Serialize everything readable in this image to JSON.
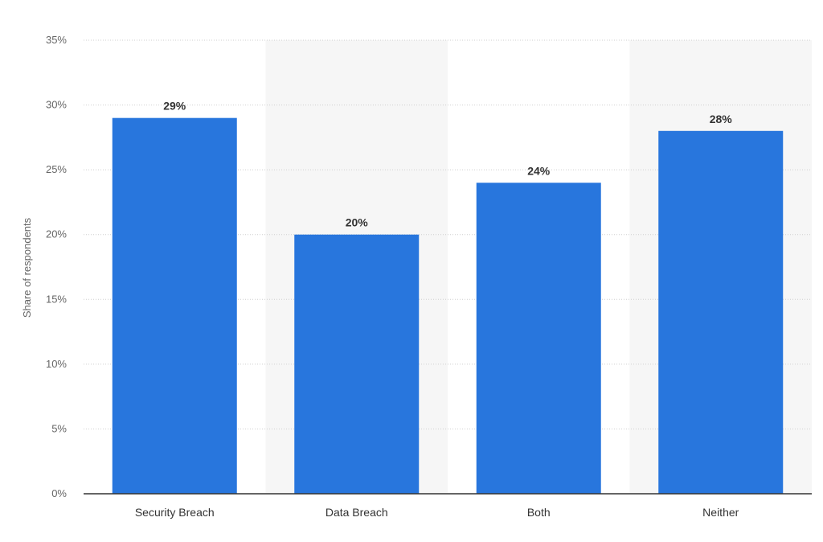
{
  "chart_data": {
    "type": "bar",
    "categories": [
      "Security Breach",
      "Data Breach",
      "Both",
      "Neither"
    ],
    "values": [
      29,
      20,
      24,
      28
    ],
    "data_labels": [
      "29%",
      "20%",
      "24%",
      "28%"
    ],
    "title": "",
    "xlabel": "",
    "ylabel": "Share of respondents",
    "ylim": [
      0,
      35
    ],
    "yticks": [
      0,
      5,
      10,
      15,
      20,
      25,
      30,
      35
    ],
    "ytick_labels": [
      "0%",
      "5%",
      "10%",
      "15%",
      "20%",
      "25%",
      "30%",
      "35%"
    ],
    "grid": true,
    "legend": "none",
    "colors": {
      "bar": "#2876dd",
      "band": "#f6f6f6",
      "gridline": "#cfcfcf",
      "axis": "#333333"
    }
  }
}
